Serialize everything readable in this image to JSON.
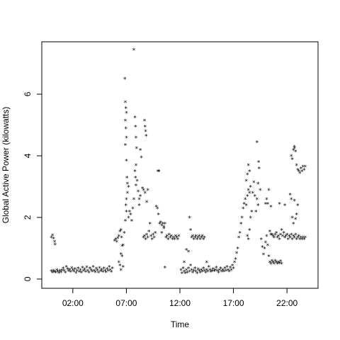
{
  "chart_data": {
    "type": "scatter",
    "title": "",
    "xlabel": "Time",
    "ylabel": "Global Active Power (kilowatts)",
    "x_unit": "hour of day",
    "xlim": [
      -0.9,
      24.9
    ],
    "ylim": [
      -0.3,
      7.7
    ],
    "x_ticks": [
      2,
      7,
      12,
      17,
      22
    ],
    "x_tick_labels": [
      "02:00",
      "07:00",
      "12:00",
      "17:00",
      "22:00"
    ],
    "y_ticks": [
      0,
      2,
      4,
      6
    ],
    "y_tick_labels": [
      "0",
      "2",
      "4",
      "6"
    ],
    "grid": false,
    "legend": "none",
    "marker": "*",
    "point_color": "#000000",
    "points": [
      [
        0.0,
        0.26
      ],
      [
        0.1,
        0.22
      ],
      [
        0.2,
        0.28
      ],
      [
        0.3,
        0.24
      ],
      [
        0.4,
        0.22
      ],
      [
        0.5,
        0.3
      ],
      [
        0.6,
        0.25
      ],
      [
        0.7,
        0.21
      ],
      [
        0.8,
        0.27
      ],
      [
        0.9,
        0.23
      ],
      [
        1.0,
        0.29
      ],
      [
        1.1,
        0.35
      ],
      [
        1.2,
        0.28
      ],
      [
        1.3,
        0.22
      ],
      [
        1.4,
        0.4
      ],
      [
        1.5,
        0.33
      ],
      [
        1.6,
        0.26
      ],
      [
        1.7,
        0.31
      ],
      [
        1.8,
        0.24
      ],
      [
        1.9,
        0.37
      ],
      [
        2.0,
        0.3
      ],
      [
        2.1,
        0.25
      ],
      [
        2.2,
        0.33
      ],
      [
        2.3,
        0.21
      ],
      [
        2.4,
        0.28
      ],
      [
        2.5,
        0.36
      ],
      [
        2.6,
        0.24
      ],
      [
        2.7,
        0.3
      ],
      [
        2.8,
        0.22
      ],
      [
        2.9,
        0.38
      ],
      [
        3.0,
        0.27
      ],
      [
        3.1,
        0.32
      ],
      [
        3.2,
        0.24
      ],
      [
        3.3,
        0.39
      ],
      [
        3.4,
        0.28
      ],
      [
        3.5,
        0.22
      ],
      [
        3.6,
        0.35
      ],
      [
        3.7,
        0.3
      ],
      [
        3.8,
        0.25
      ],
      [
        3.9,
        0.4
      ],
      [
        4.0,
        0.28
      ],
      [
        4.1,
        0.23
      ],
      [
        4.2,
        0.34
      ],
      [
        4.3,
        0.29
      ],
      [
        4.4,
        0.22
      ],
      [
        4.5,
        0.37
      ],
      [
        4.6,
        0.26
      ],
      [
        4.7,
        0.31
      ],
      [
        4.8,
        0.24
      ],
      [
        4.9,
        0.35
      ],
      [
        5.0,
        0.28
      ],
      [
        5.1,
        0.23
      ],
      [
        5.2,
        0.33
      ],
      [
        5.3,
        0.27
      ],
      [
        5.4,
        0.4
      ],
      [
        5.5,
        0.3
      ],
      [
        5.6,
        0.24
      ],
      [
        5.7,
        0.36
      ],
      [
        0.0,
        1.35
      ],
      [
        0.1,
        1.42
      ],
      [
        0.2,
        1.32
      ],
      [
        0.3,
        1.22
      ],
      [
        0.35,
        1.13
      ],
      [
        5.9,
        1.25
      ],
      [
        6.0,
        1.3
      ],
      [
        6.1,
        1.22
      ],
      [
        6.2,
        1.33
      ],
      [
        6.3,
        1.4
      ],
      [
        6.4,
        1.55
      ],
      [
        6.5,
        1.6
      ],
      [
        6.55,
        1.35
      ],
      [
        6.3,
        0.55
      ],
      [
        6.4,
        0.45
      ],
      [
        6.5,
        0.3
      ],
      [
        6.6,
        0.75
      ],
      [
        6.7,
        0.4
      ],
      [
        6.5,
        0.82
      ],
      [
        6.6,
        1.08
      ],
      [
        6.7,
        1.1
      ],
      [
        6.8,
        1.5
      ],
      [
        6.9,
        1.9
      ],
      [
        7.0,
        2.2
      ],
      [
        7.1,
        2.8
      ],
      [
        7.2,
        3.0
      ],
      [
        7.0,
        2.6
      ],
      [
        6.95,
        2.4
      ],
      [
        6.85,
        6.5
      ],
      [
        6.9,
        5.75
      ],
      [
        6.95,
        5.55
      ],
      [
        7.0,
        5.4
      ],
      [
        6.9,
        5.15
      ],
      [
        6.95,
        4.9
      ],
      [
        7.0,
        4.6
      ],
      [
        6.9,
        4.35
      ],
      [
        7.0,
        3.85
      ],
      [
        7.05,
        3.3
      ],
      [
        7.1,
        3.1
      ],
      [
        7.2,
        2.0
      ],
      [
        7.3,
        2.2
      ],
      [
        7.4,
        2.1
      ],
      [
        7.5,
        1.9
      ],
      [
        7.6,
        2.3
      ],
      [
        7.7,
        2.6
      ],
      [
        7.8,
        5.25
      ],
      [
        7.85,
        4.95
      ],
      [
        7.9,
        4.6
      ],
      [
        7.95,
        4.25
      ],
      [
        7.9,
        3.7
      ],
      [
        7.8,
        3.5
      ],
      [
        7.85,
        3.3
      ],
      [
        7.9,
        3.05
      ],
      [
        7.7,
        7.45
      ],
      [
        8.0,
        3.2
      ],
      [
        8.1,
        2.85
      ],
      [
        8.2,
        2.6
      ],
      [
        8.3,
        2.7
      ],
      [
        8.4,
        3.95
      ],
      [
        8.3,
        4.2
      ],
      [
        8.2,
        2.4
      ],
      [
        8.5,
        2.95
      ],
      [
        8.6,
        2.9
      ],
      [
        8.7,
        5.15
      ],
      [
        8.75,
        4.95
      ],
      [
        8.8,
        4.8
      ],
      [
        8.85,
        4.65
      ],
      [
        8.75,
        2.8
      ],
      [
        8.9,
        2.5
      ],
      [
        9.0,
        2.9
      ],
      [
        8.6,
        1.35
      ],
      [
        8.7,
        1.4
      ],
      [
        8.8,
        1.3
      ],
      [
        8.9,
        1.45
      ],
      [
        9.0,
        1.35
      ],
      [
        9.1,
        1.55
      ],
      [
        9.2,
        1.8
      ],
      [
        9.3,
        1.4
      ],
      [
        9.4,
        1.3
      ],
      [
        9.5,
        1.45
      ],
      [
        9.6,
        1.35
      ],
      [
        9.7,
        1.5
      ],
      [
        9.8,
        2.35
      ],
      [
        9.9,
        2.3
      ],
      [
        10.0,
        2.1
      ],
      [
        9.95,
        3.5
      ],
      [
        10.05,
        3.5
      ],
      [
        10.1,
        1.8
      ],
      [
        10.2,
        1.85
      ],
      [
        10.3,
        1.75
      ],
      [
        10.4,
        1.8
      ],
      [
        10.5,
        1.7
      ],
      [
        10.6,
        1.8
      ],
      [
        10.7,
        1.35
      ],
      [
        10.8,
        1.4
      ],
      [
        10.9,
        1.3
      ],
      [
        11.0,
        1.45
      ],
      [
        11.1,
        1.35
      ],
      [
        11.2,
        1.4
      ],
      [
        11.3,
        1.3
      ],
      [
        11.4,
        1.35
      ],
      [
        11.5,
        1.3
      ],
      [
        11.6,
        1.4
      ],
      [
        11.7,
        1.35
      ],
      [
        11.8,
        1.3
      ],
      [
        11.9,
        1.4
      ],
      [
        10.6,
        0.38
      ],
      [
        10.5,
        1.65
      ],
      [
        10.3,
        1.5
      ],
      [
        12.1,
        0.3
      ],
      [
        12.2,
        0.2
      ],
      [
        12.3,
        0.35
      ],
      [
        12.4,
        0.25
      ],
      [
        12.5,
        0.2
      ],
      [
        12.6,
        0.3
      ],
      [
        12.7,
        0.22
      ],
      [
        12.8,
        0.35
      ],
      [
        12.9,
        0.25
      ],
      [
        13.0,
        0.45
      ],
      [
        13.1,
        0.3
      ],
      [
        13.2,
        0.22
      ],
      [
        13.3,
        0.28
      ],
      [
        13.4,
        0.35
      ],
      [
        13.5,
        0.25
      ],
      [
        13.6,
        0.2
      ],
      [
        13.7,
        0.32
      ],
      [
        13.8,
        0.27
      ],
      [
        13.9,
        0.22
      ],
      [
        14.0,
        0.3
      ],
      [
        14.1,
        0.25
      ],
      [
        14.2,
        0.35
      ],
      [
        14.3,
        0.28
      ],
      [
        14.4,
        0.22
      ],
      [
        14.5,
        0.3
      ],
      [
        14.6,
        0.25
      ],
      [
        14.7,
        0.4
      ],
      [
        14.8,
        0.3
      ],
      [
        14.9,
        0.24
      ],
      [
        15.0,
        0.28
      ],
      [
        15.1,
        0.33
      ],
      [
        15.2,
        0.26
      ],
      [
        15.3,
        0.3
      ],
      [
        15.4,
        0.38
      ],
      [
        15.5,
        0.27
      ],
      [
        15.6,
        0.22
      ],
      [
        15.7,
        0.3
      ],
      [
        15.8,
        0.35
      ],
      [
        15.9,
        0.25
      ],
      [
        16.0,
        0.3
      ],
      [
        16.1,
        0.25
      ],
      [
        16.2,
        0.35
      ],
      [
        16.3,
        0.28
      ],
      [
        16.4,
        0.4
      ],
      [
        16.5,
        0.3
      ],
      [
        16.6,
        0.25
      ],
      [
        16.7,
        0.38
      ],
      [
        16.8,
        0.3
      ],
      [
        16.9,
        0.45
      ],
      [
        17.0,
        0.35
      ],
      [
        12.4,
        0.55
      ],
      [
        12.6,
        0.95
      ],
      [
        12.8,
        0.9
      ],
      [
        12.9,
        2.0
      ],
      [
        13.0,
        1.6
      ],
      [
        13.1,
        1.35
      ],
      [
        13.2,
        1.4
      ],
      [
        13.3,
        1.3
      ],
      [
        13.4,
        1.35
      ],
      [
        13.5,
        1.4
      ],
      [
        13.6,
        1.3
      ],
      [
        13.7,
        1.35
      ],
      [
        13.8,
        1.4
      ],
      [
        13.9,
        1.3
      ],
      [
        14.0,
        1.35
      ],
      [
        14.1,
        1.4
      ],
      [
        14.2,
        1.3
      ],
      [
        14.3,
        1.35
      ],
      [
        14.5,
        0.55
      ],
      [
        17.1,
        0.55
      ],
      [
        17.2,
        0.65
      ],
      [
        17.3,
        0.85
      ],
      [
        17.4,
        1.0
      ],
      [
        17.5,
        1.35
      ],
      [
        17.6,
        1.5
      ],
      [
        17.7,
        1.8
      ],
      [
        17.8,
        2.0
      ],
      [
        17.9,
        2.3
      ],
      [
        18.0,
        2.45
      ],
      [
        18.1,
        2.6
      ],
      [
        18.2,
        2.4
      ],
      [
        18.3,
        2.7
      ],
      [
        18.4,
        2.9
      ],
      [
        18.5,
        2.8
      ],
      [
        18.6,
        3.0
      ],
      [
        18.2,
        3.2
      ],
      [
        18.3,
        3.4
      ],
      [
        18.4,
        3.7
      ],
      [
        18.5,
        3.5
      ],
      [
        18.3,
        1.4
      ],
      [
        18.4,
        1.3
      ],
      [
        18.5,
        1.6
      ],
      [
        18.6,
        2.0
      ],
      [
        18.7,
        2.2
      ],
      [
        18.8,
        2.8
      ],
      [
        18.9,
        3.15
      ],
      [
        19.0,
        2.7
      ],
      [
        19.1,
        2.2
      ],
      [
        19.2,
        2.6
      ],
      [
        19.3,
        2.4
      ],
      [
        19.2,
        4.45
      ],
      [
        19.35,
        3.8
      ],
      [
        19.4,
        3.6
      ],
      [
        19.5,
        2.9
      ],
      [
        19.3,
        3.1
      ],
      [
        19.6,
        1.3
      ],
      [
        19.7,
        1.05
      ],
      [
        19.8,
        0.8
      ],
      [
        19.9,
        1.0
      ],
      [
        20.0,
        1.2
      ],
      [
        20.1,
        1.4
      ],
      [
        20.2,
        1.1
      ],
      [
        20.3,
        0.75
      ],
      [
        20.1,
        2.6
      ],
      [
        20.2,
        2.45
      ],
      [
        20.3,
        2.9
      ],
      [
        20.4,
        1.55
      ],
      [
        20.5,
        1.45
      ],
      [
        20.4,
        0.55
      ],
      [
        20.5,
        0.5
      ],
      [
        20.6,
        0.6
      ],
      [
        20.7,
        0.55
      ],
      [
        20.8,
        0.5
      ],
      [
        20.9,
        0.6
      ],
      [
        21.0,
        0.55
      ],
      [
        21.1,
        0.5
      ],
      [
        21.2,
        0.55
      ],
      [
        21.3,
        0.52
      ],
      [
        21.4,
        0.58
      ],
      [
        21.5,
        0.5
      ],
      [
        20.6,
        1.45
      ],
      [
        20.7,
        1.4
      ],
      [
        20.8,
        1.35
      ],
      [
        20.9,
        1.45
      ],
      [
        21.0,
        1.5
      ],
      [
        21.1,
        1.35
      ],
      [
        21.2,
        1.4
      ],
      [
        21.3,
        1.3
      ],
      [
        21.4,
        1.45
      ],
      [
        21.5,
        1.6
      ],
      [
        21.6,
        1.4
      ],
      [
        21.7,
        1.5
      ],
      [
        21.8,
        1.35
      ],
      [
        21.9,
        1.4
      ],
      [
        22.0,
        1.45
      ],
      [
        22.1,
        1.3
      ],
      [
        22.2,
        1.4
      ],
      [
        22.3,
        1.35
      ],
      [
        22.4,
        1.45
      ],
      [
        22.5,
        1.3
      ],
      [
        22.6,
        1.4
      ],
      [
        22.7,
        1.35
      ],
      [
        22.8,
        1.45
      ],
      [
        22.9,
        1.3
      ],
      [
        23.0,
        1.35
      ],
      [
        23.1,
        1.4
      ],
      [
        23.2,
        1.3
      ],
      [
        23.3,
        1.35
      ],
      [
        23.4,
        1.3
      ],
      [
        23.5,
        1.35
      ],
      [
        23.6,
        1.3
      ],
      [
        23.7,
        1.35
      ],
      [
        20.0,
        2.45
      ],
      [
        20.5,
        2.35
      ],
      [
        21.3,
        2.45
      ],
      [
        21.8,
        2.4
      ],
      [
        22.3,
        2.75
      ],
      [
        22.4,
        2.6
      ],
      [
        22.5,
        2.0
      ],
      [
        22.6,
        1.8
      ],
      [
        22.7,
        2.55
      ],
      [
        22.8,
        1.95
      ],
      [
        22.9,
        2.1
      ],
      [
        23.0,
        2.4
      ],
      [
        22.4,
        4.0
      ],
      [
        22.5,
        3.9
      ],
      [
        22.6,
        4.2
      ],
      [
        22.7,
        4.3
      ],
      [
        22.8,
        4.15
      ],
      [
        22.9,
        3.7
      ],
      [
        23.0,
        3.55
      ],
      [
        23.1,
        3.5
      ],
      [
        23.2,
        3.45
      ],
      [
        23.3,
        3.6
      ],
      [
        23.4,
        3.5
      ],
      [
        23.5,
        3.65
      ],
      [
        23.6,
        3.55
      ],
      [
        23.7,
        3.65
      ],
      [
        22.7,
        4.25
      ]
    ]
  }
}
